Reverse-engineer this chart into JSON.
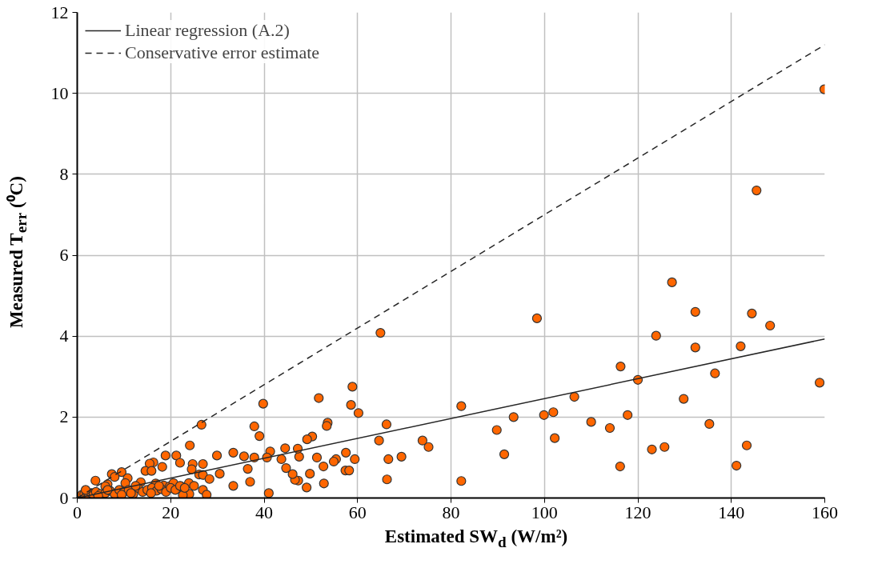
{
  "chart_data": {
    "type": "scatter",
    "xlabel": "Estimated SW$_{d}$ (W/m²)",
    "ylabel": "Measured T$_{err}$ (⁰C)",
    "xlim": [
      0,
      160
    ],
    "ylim": [
      0,
      12
    ],
    "xticks": [
      0,
      20,
      40,
      60,
      80,
      100,
      120,
      140,
      160
    ],
    "yticks": [
      0,
      2,
      4,
      6,
      8,
      10,
      12
    ],
    "grid": true,
    "legend": "top left",
    "series": [
      {
        "marker": "circle",
        "color": "#ff6600",
        "x": [
          82.2,
          82.2,
          89.8,
          91.4,
          93.4,
          98.4,
          99.9,
          101.9,
          102.2,
          106.4,
          110,
          114,
          116.2,
          116.3,
          117.8,
          120,
          123,
          123.9,
          125.7,
          127.3,
          129.8,
          132.3,
          132.3,
          135.3,
          136.5,
          141.1,
          142,
          143.3,
          144.4,
          145.4,
          148.3,
          158.9,
          159.9,
          64.9,
          66.2,
          66.3,
          66.6,
          64.6,
          69.4,
          73.9,
          75.2,
          60.2,
          58.9,
          58.6,
          59.4,
          57.5,
          57.4,
          58.2,
          55.4,
          54.9,
          53.6,
          53.4,
          52.7,
          52.8,
          51.7,
          51.3,
          50.3,
          49.2,
          49.8,
          49.1,
          47.5,
          47.3,
          46.6,
          47.2,
          46.1,
          44.5,
          44.7,
          43.7,
          41.3,
          40.6,
          41.0,
          39.8,
          39.0,
          37.9,
          37.9,
          37.0,
          36.5,
          35.7,
          33.4,
          33.4,
          30.5,
          29.9,
          26.6,
          24.1,
          21.2,
          22.0,
          18.9,
          16.3,
          15.5,
          14.6,
          15.9,
          18.2,
          24.7,
          24.5,
          26.9,
          26.1,
          26.9,
          28.3,
          9.5,
          7.4,
          8.0,
          3.9,
          10.8,
          13.6,
          10.3,
          6.5,
          6.0,
          16.8,
          18.5,
          19.8,
          20.6,
          22.2,
          23.9,
          26.9,
          27.7,
          24.0,
          22.6,
          1,
          1.5,
          2,
          2.5,
          3,
          3.5,
          4,
          5,
          6,
          7,
          8,
          9,
          10,
          11,
          12,
          13,
          14,
          15,
          16,
          17,
          18,
          19,
          20,
          21,
          22,
          23,
          1.8,
          4.5,
          6.5,
          9.5,
          12.5,
          11.5,
          15.8,
          17.5,
          25
        ],
        "values": [
          2.27,
          0.42,
          1.68,
          1.08,
          2.0,
          4.44,
          2.05,
          2.12,
          1.48,
          2.5,
          1.88,
          1.73,
          0.78,
          3.25,
          2.05,
          2.92,
          1.2,
          4.01,
          1.26,
          5.33,
          2.45,
          4.6,
          3.72,
          1.83,
          3.08,
          0.8,
          3.75,
          1.3,
          4.56,
          7.6,
          4.26,
          2.85,
          10.1,
          4.08,
          1.82,
          0.46,
          0.96,
          1.42,
          1.02,
          1.42,
          1.26,
          2.1,
          2.75,
          2.3,
          0.96,
          1.12,
          0.68,
          0.68,
          0.96,
          0.9,
          1.86,
          1.78,
          0.78,
          0.36,
          2.47,
          1.0,
          1.52,
          1.45,
          0.6,
          0.26,
          1.02,
          0.43,
          0.45,
          1.22,
          0.59,
          1.23,
          0.74,
          0.96,
          1.15,
          1.0,
          0.12,
          2.33,
          1.53,
          1.77,
          1.0,
          0.4,
          0.72,
          1.03,
          1.12,
          0.3,
          0.6,
          1.05,
          1.81,
          1.3,
          1.05,
          0.87,
          1.05,
          0.88,
          0.85,
          0.67,
          0.67,
          0.77,
          0.84,
          0.71,
          0.84,
          0.58,
          0.57,
          0.47,
          0.64,
          0.59,
          0.52,
          0.43,
          0.49,
          0.39,
          0.37,
          0.34,
          0.29,
          0.36,
          0.31,
          0.29,
          0.37,
          0.29,
          0.37,
          0.2,
          0.08,
          0.1,
          0.07,
          0.08,
          0.1,
          0.15,
          0.05,
          0.12,
          0.08,
          0.15,
          0.1,
          0.12,
          0.18,
          0.1,
          0.2,
          0.15,
          0.2,
          0.1,
          0.25,
          0.15,
          0.2,
          0.25,
          0.18,
          0.22,
          0.15,
          0.25,
          0.2,
          0.3,
          0.25,
          0.2,
          0.05,
          0.2,
          0.08,
          0.3,
          0.12,
          0.12,
          0.3,
          0.3
        ]
      },
      {
        "type": "line",
        "name": "Linear regression (A.2)",
        "color": "#262626",
        "line_style": "solid",
        "x": [
          0,
          160
        ],
        "values": [
          0,
          3.93
        ]
      },
      {
        "type": "line",
        "name": "Conservative error estimate",
        "color": "#262626",
        "line_style": "dashed",
        "x": [
          0,
          160
        ],
        "values": [
          0,
          11.2
        ]
      }
    ]
  }
}
